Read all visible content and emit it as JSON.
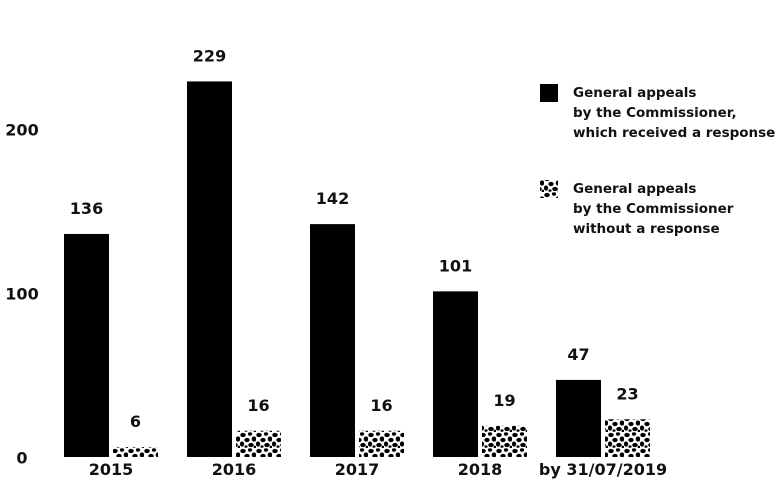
{
  "chart_data": {
    "type": "bar",
    "title": "",
    "xlabel": "",
    "ylabel": "",
    "categories": [
      "2015",
      "2016",
      "2017",
      "2018",
      "by 31/07/2019"
    ],
    "series": [
      {
        "name": "General appeals by the Commissioner, which received a response",
        "legend_lines": [
          "General appeals",
          "by the Commissioner,",
          "which received a response"
        ],
        "values": [
          136,
          229,
          142,
          101,
          47
        ],
        "value_labels": [
          "136",
          "229",
          "142",
          "101",
          "47"
        ],
        "fill": "solid",
        "color": "#000000"
      },
      {
        "name": "General appeals by the Commissioner without a response",
        "legend_lines": [
          "General appeals",
          "by the Commissioner",
          "without a response"
        ],
        "values": [
          6,
          16,
          16,
          19,
          23
        ],
        "value_labels": [
          "6",
          "16",
          "16",
          "19",
          "23"
        ],
        "fill": "spotted-pattern",
        "color": "#000000"
      }
    ],
    "yticks": [
      "0",
      "100",
      "200"
    ],
    "ylim": [
      0,
      250
    ],
    "grid": false,
    "legend_position": "right"
  }
}
